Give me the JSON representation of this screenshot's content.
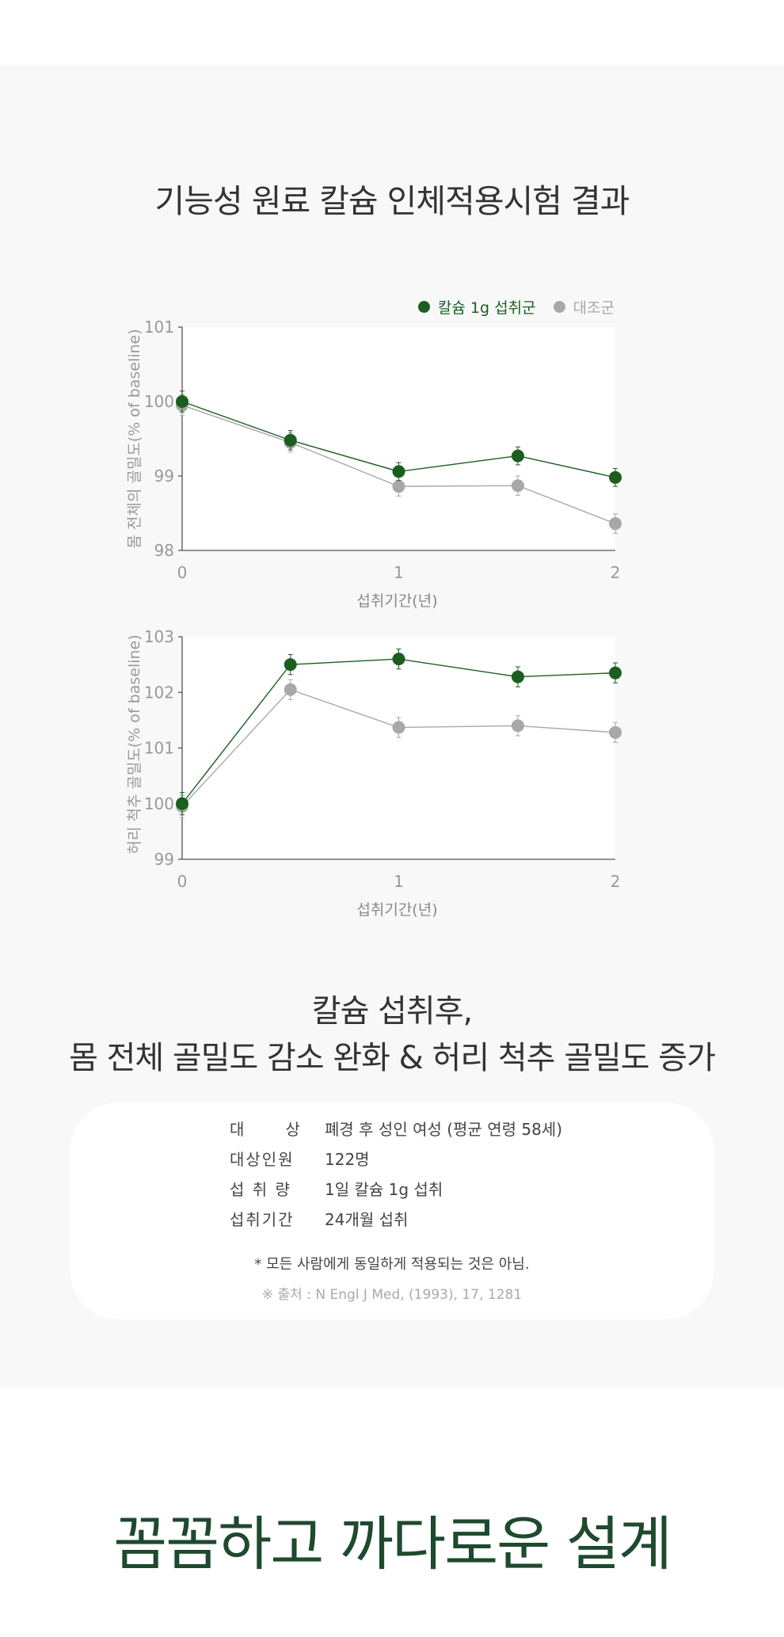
{
  "section_title": "기능성 원료 칼슘 인체적용시험 결과",
  "legend": [
    {
      "label": "칼슘 1g 섭취군",
      "color": "#1b5e20"
    },
    {
      "label": "대조군",
      "color": "#a8a8a8"
    }
  ],
  "chart_data": [
    {
      "type": "line",
      "ylabel": "몸 전체의 골밀도(% of baseline)",
      "xlabel": "섭취기간(년)",
      "xlim": [
        0,
        2
      ],
      "ylim": [
        98,
        101
      ],
      "xticks": [
        "0",
        "1",
        "2"
      ],
      "yticks": [
        "98",
        "99",
        "100",
        "101"
      ],
      "series": [
        {
          "name": "칼슘 1g 섭취군",
          "color": "#1b5e20",
          "x": [
            0,
            0.5,
            1,
            1.55,
            2
          ],
          "values": [
            100.0,
            99.48,
            99.06,
            99.27,
            98.98
          ],
          "err": [
            0.14,
            0.13,
            0.12,
            0.12,
            0.12
          ]
        },
        {
          "name": "대조군",
          "color": "#a8a8a8",
          "x": [
            0,
            0.5,
            1,
            1.55,
            2
          ],
          "values": [
            99.95,
            99.45,
            98.86,
            98.87,
            98.36
          ],
          "err": [
            0.14,
            0.13,
            0.13,
            0.13,
            0.13
          ]
        }
      ]
    },
    {
      "type": "line",
      "ylabel": "허리 척추 골밀도(% of baseline)",
      "xlabel": "섭취기간(년)",
      "xlim": [
        0,
        2
      ],
      "ylim": [
        99,
        103
      ],
      "xticks": [
        "0",
        "1",
        "2"
      ],
      "yticks": [
        "99",
        "100",
        "101",
        "102",
        "103"
      ],
      "series": [
        {
          "name": "칼슘 1g 섭취군",
          "color": "#1b5e20",
          "x": [
            0,
            0.5,
            1,
            1.55,
            2
          ],
          "values": [
            100.0,
            102.5,
            102.6,
            102.28,
            102.35
          ],
          "err": [
            0.2,
            0.18,
            0.18,
            0.18,
            0.18
          ]
        },
        {
          "name": "대조군",
          "color": "#a8a8a8",
          "x": [
            0,
            0.5,
            1,
            1.55,
            2
          ],
          "values": [
            99.95,
            102.05,
            101.37,
            101.4,
            101.28
          ],
          "err": [
            0.2,
            0.18,
            0.18,
            0.18,
            0.18
          ]
        }
      ]
    }
  ],
  "headline": {
    "line1": "칼슘 섭취후,",
    "line2": "몸 전체 골밀도 감소 완화 & 허리 척추 골밀도 증가"
  },
  "study": [
    {
      "key": "대      상",
      "value": "폐경 후 성인 여성 (평균 연령 58세)"
    },
    {
      "key": "대상인원",
      "value": "122명"
    },
    {
      "key": "섭 취 량",
      "value": "1일 칼슘 1g 섭취"
    },
    {
      "key": "섭취기간",
      "value": "24개월 섭취"
    }
  ],
  "disclaimer": "* 모든 사람에게 동일하게 적용되는 것은 아님.",
  "source": "※ 출처 : N Engl J Med, (1993), 17, 1281",
  "bottom": {
    "title": "꼼꼼하고 까다로운 설계"
  }
}
